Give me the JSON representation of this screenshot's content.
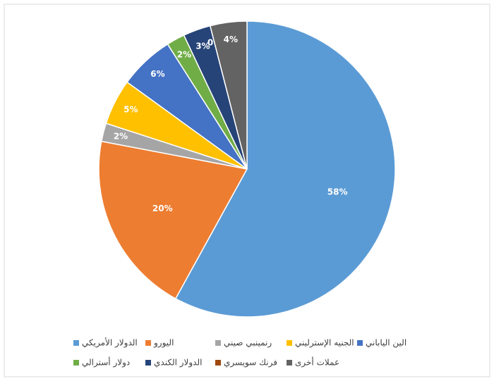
{
  "chart_data": {
    "type": "pie",
    "categories": [
      "الدولار الأمريكي",
      "اليورو",
      "رنمينبي صيني",
      "الجنيه الإسترليني",
      "الين الياباني",
      "دولار أسترالي",
      "الدولار الكندي",
      "فرنك سويسري",
      "عملات أخرى"
    ],
    "values": [
      58,
      20,
      2,
      5,
      6,
      2,
      3,
      0,
      4
    ],
    "value_labels": [
      "58%",
      "20%",
      "2%",
      "5%",
      "6%",
      "2%",
      "3%",
      "0%",
      "4%"
    ],
    "colors": [
      "#5b9bd5",
      "#ed7d31",
      "#a5a5a5",
      "#ffc000",
      "#4472c4",
      "#70ad47",
      "#264478",
      "#9e480e",
      "#636363"
    ]
  }
}
